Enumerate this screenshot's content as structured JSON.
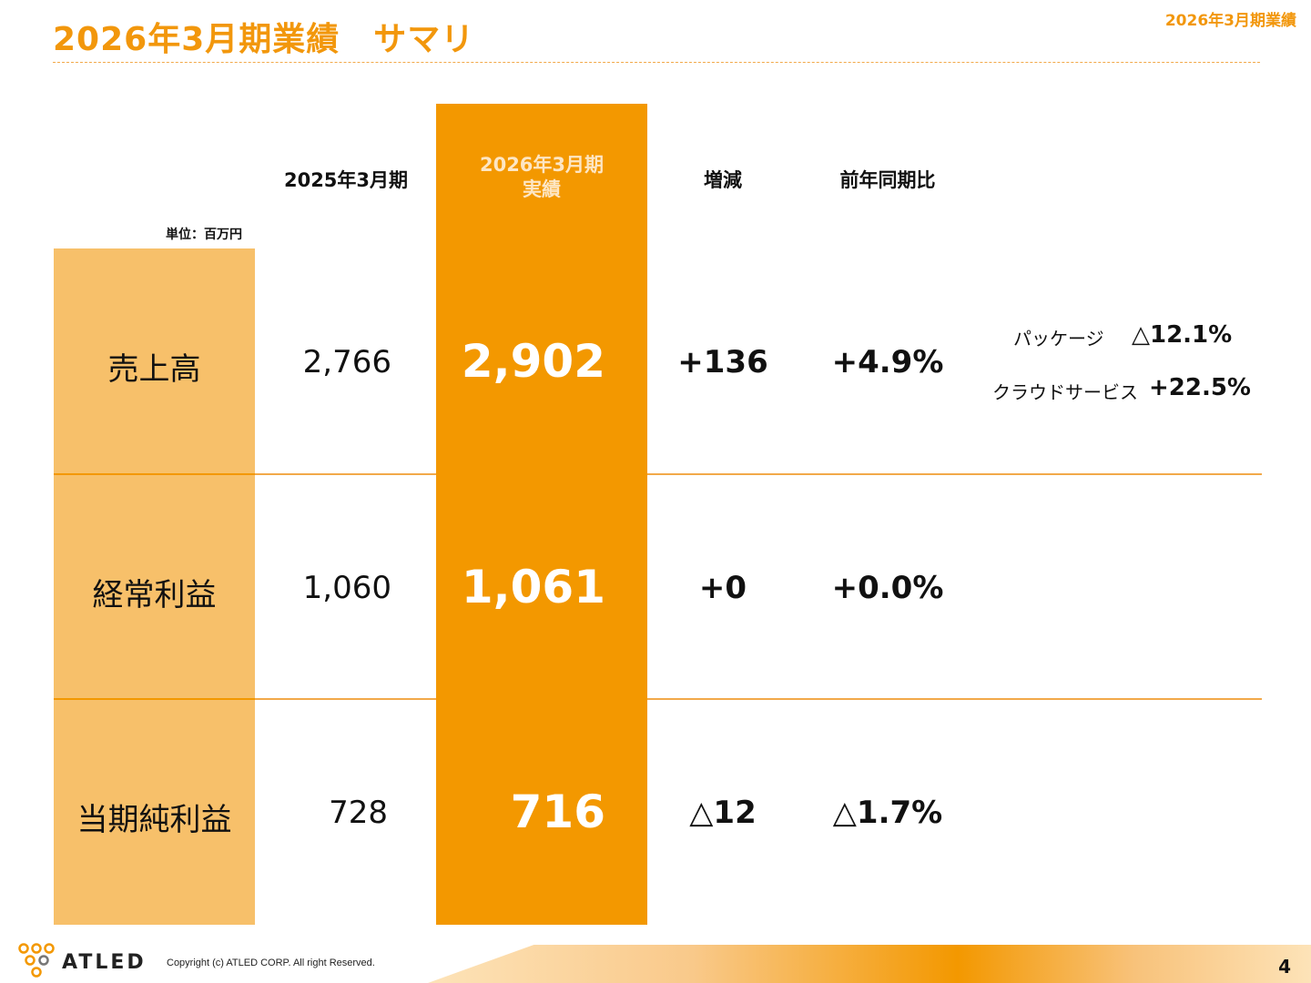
{
  "header": {
    "title": "2026年3月期業績　サマリ",
    "corner_tag": "2026年3月期業績"
  },
  "table": {
    "unit": "単位：百万円",
    "columns": {
      "prev": "2025年3月期",
      "curr_line1": "2026年3月期",
      "curr_line2": "実績",
      "diff": "増減",
      "yoy": "前年同期比"
    },
    "rows": [
      {
        "label": "売上高",
        "prev": "2,766",
        "curr": "2,902",
        "diff": "+136",
        "yoy": "+4.9%"
      },
      {
        "label": "経常利益",
        "prev": "1,060",
        "curr": "1,061",
        "diff": "+0",
        "yoy": "+0.0%"
      },
      {
        "label": "当期純利益",
        "prev": "728",
        "curr": "716",
        "diff": "△12",
        "yoy": "△1.7%"
      }
    ],
    "segments": [
      {
        "label": "パッケージ",
        "value": "△12.1%"
      },
      {
        "label": "クラウドサービス",
        "value": "+22.5%"
      }
    ]
  },
  "footer": {
    "logo_text": "ATLED",
    "copyright": "Copyright (c)  ATLED CORP. All right Reserved.",
    "page_number": "4"
  },
  "colors": {
    "accent": "#f39800",
    "accent_light": "#f7c06a",
    "rule": "#f2a94a"
  }
}
